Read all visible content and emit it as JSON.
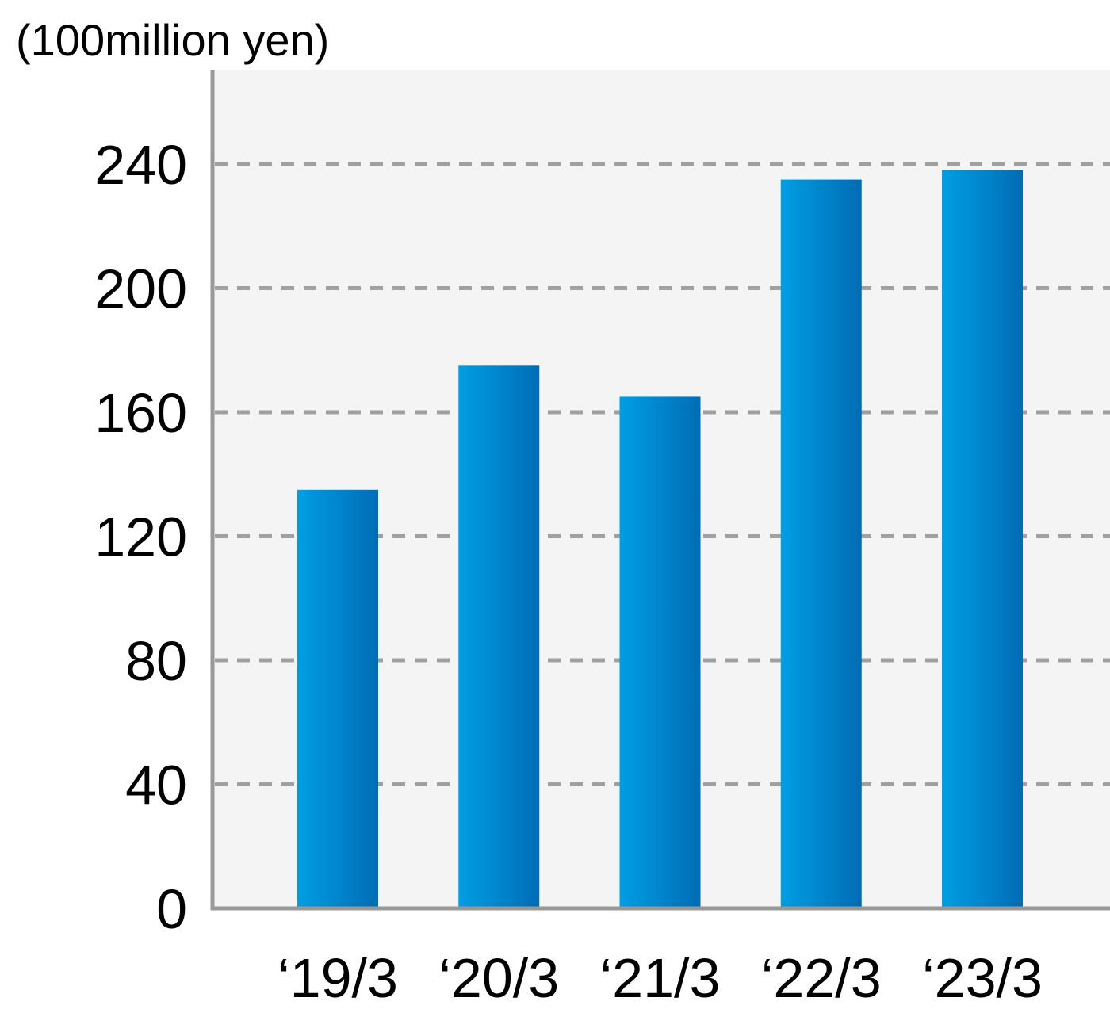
{
  "chart_data": {
    "type": "bar",
    "unit_label": "(100million yen)",
    "categories": [
      "‘19/3",
      "‘20/3",
      "‘21/3",
      "‘22/3",
      "‘23/3"
    ],
    "series": [
      {
        "values": [
          135,
          175,
          165,
          235,
          238
        ]
      }
    ],
    "yticks": [
      "0",
      "40",
      "80",
      "120",
      "160",
      "200",
      "240"
    ],
    "ytick_values": [
      0,
      40,
      80,
      120,
      160,
      200,
      240
    ],
    "ylim": [
      0,
      270
    ],
    "grid": true,
    "grid_style": "dashed",
    "legend": "none",
    "colors": {
      "bar_light": "#009ee3",
      "bar_dark": "#006cb5",
      "plot_background": "#f4f4f4",
      "axis": "#999999",
      "grid": "#a0a0a0"
    }
  }
}
